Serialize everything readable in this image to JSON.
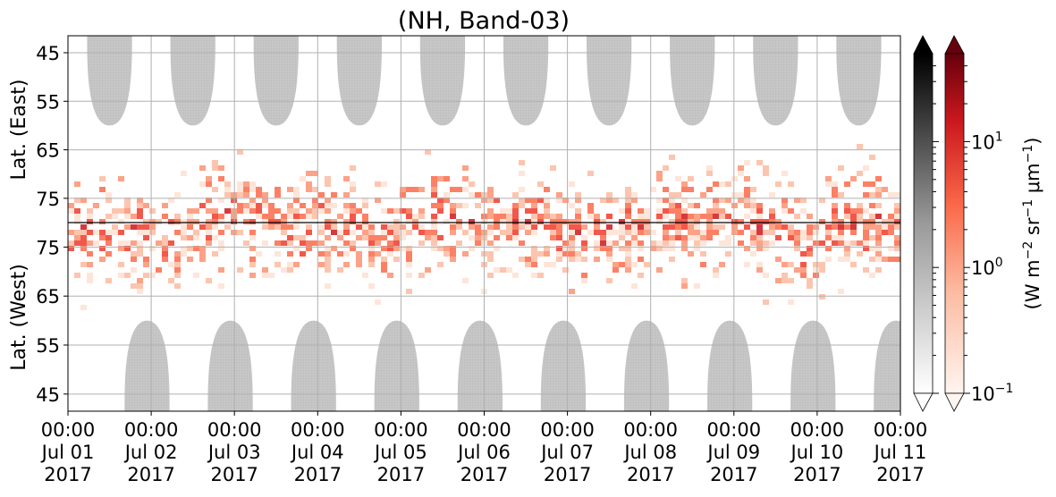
{
  "chart_data": {
    "type": "heatmap",
    "title": "(NH, Band-03)",
    "xlabel": "",
    "ylabel_top": "Lat. (East)",
    "ylabel_bottom": "Lat. (West)",
    "x_ticks": [
      {
        "time": "00:00",
        "date": "Jul 01",
        "year": "2017"
      },
      {
        "time": "00:00",
        "date": "Jul 02",
        "year": "2017"
      },
      {
        "time": "00:00",
        "date": "Jul 03",
        "year": "2017"
      },
      {
        "time": "00:00",
        "date": "Jul 04",
        "year": "2017"
      },
      {
        "time": "00:00",
        "date": "Jul 05",
        "year": "2017"
      },
      {
        "time": "00:00",
        "date": "Jul 06",
        "year": "2017"
      },
      {
        "time": "00:00",
        "date": "Jul 07",
        "year": "2017"
      },
      {
        "time": "00:00",
        "date": "Jul 08",
        "year": "2017"
      },
      {
        "time": "00:00",
        "date": "Jul 09",
        "year": "2017"
      },
      {
        "time": "00:00",
        "date": "Jul 10",
        "year": "2017"
      },
      {
        "time": "00:00",
        "date": "Jul 11",
        "year": "2017"
      }
    ],
    "y_ticks_top": [
      "45",
      "55",
      "65",
      "75"
    ],
    "y_ticks_bottom": [
      "75",
      "65",
      "55",
      "45"
    ],
    "grid": true,
    "gray_daylight_regions": {
      "top_centers_days": [
        0.5,
        1.5,
        2.5,
        3.5,
        4.5,
        5.5,
        6.5,
        7.5,
        8.5,
        9.5
      ],
      "top_lowest_lat": 60,
      "bottom_centers_days": [
        0.95,
        1.95,
        2.95,
        3.95,
        4.95,
        5.95,
        6.95,
        7.95,
        8.95,
        9.95
      ],
      "bottom_lowest_lat": 60
    },
    "colorbar_gray": {
      "scale": "log",
      "range": [
        0.1,
        50
      ],
      "extend": "both"
    },
    "colorbar_reds": {
      "scale": "log",
      "range": [
        0.1,
        50
      ],
      "extend": "both",
      "ticks": [
        {
          "base": "10",
          "exp": "−1",
          "value": 0.1
        },
        {
          "base": "10",
          "exp": "0",
          "value": 1
        },
        {
          "base": "10",
          "exp": "1",
          "value": 10
        }
      ],
      "label": {
        "prefix": "(W m",
        "e1": "−2",
        "mid": " sr",
        "e2": "−1",
        "mu": " μm",
        "e3": "−1",
        "suffix": ")"
      }
    },
    "colors": {
      "gray_region": "#c8c8c8",
      "reds_light": "#fff5f0",
      "reds_mid": "#fb6a4a",
      "reds_dark": "#67000d"
    }
  }
}
